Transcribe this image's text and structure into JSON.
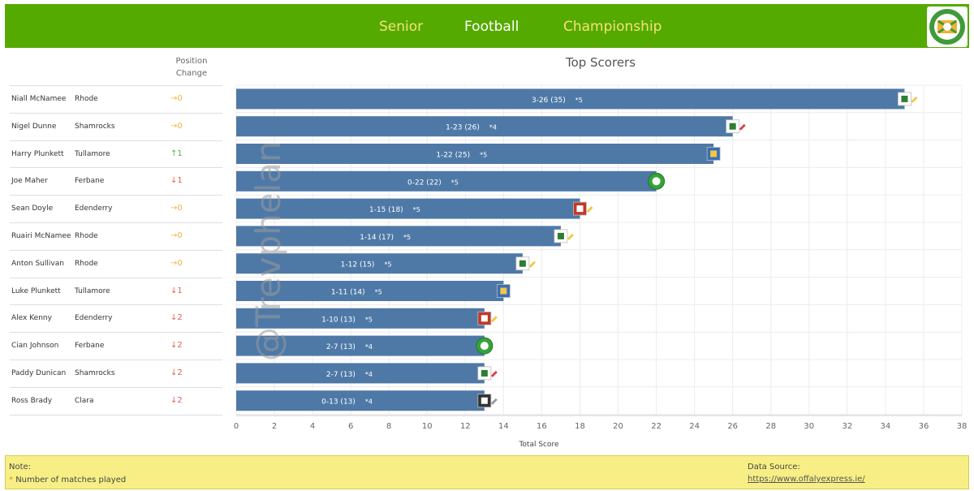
{
  "header": {
    "title_words": [
      "Senior",
      "Football",
      "Championship"
    ],
    "title_colors": [
      "#f3e27a",
      "#ffffff",
      "#f3e27a"
    ],
    "logo_icon": "offaly-gaa-crest-icon"
  },
  "table": {
    "position_header_line1": "Position",
    "position_header_line2": "Change",
    "rows": [
      {
        "name": "Niall McNamee",
        "club": "Rhode",
        "change": "→0"
      },
      {
        "name": "Nigel Dunne",
        "club": "Shamrocks",
        "change": "→0"
      },
      {
        "name": "Harry Plunkett",
        "club": "Tullamore",
        "change": "↑1"
      },
      {
        "name": "Joe Maher",
        "club": "Ferbane",
        "change": "↓1"
      },
      {
        "name": "Sean Doyle",
        "club": "Edenderry",
        "change": "→0"
      },
      {
        "name": "Ruairi McNamee",
        "club": "Rhode",
        "change": "→0"
      },
      {
        "name": "Anton Sullivan",
        "club": "Rhode",
        "change": "→0"
      },
      {
        "name": "Luke Plunkett",
        "club": "Tullamore",
        "change": "↓1"
      },
      {
        "name": "Alex Kenny",
        "club": "Edenderry",
        "change": "↓2"
      },
      {
        "name": "Cian Johnson",
        "club": "Ferbane",
        "change": "↓2"
      },
      {
        "name": "Paddy Dunican",
        "club": "Shamrocks",
        "change": "↓2"
      },
      {
        "name": "Ross Brady",
        "club": "Clara",
        "change": "↓2"
      }
    ],
    "change_colors": {
      "same": "#f0b437",
      "up": "#4caf50",
      "down": "#e65a5a"
    }
  },
  "chart_data": {
    "type": "bar",
    "orientation": "horizontal",
    "title": "Top Scorers",
    "xlabel": "Total Score",
    "xlim": [
      0,
      38
    ],
    "xticks": [
      0,
      2,
      4,
      6,
      8,
      10,
      12,
      14,
      16,
      18,
      20,
      22,
      24,
      26,
      28,
      30,
      32,
      34,
      36,
      38
    ],
    "grid": true,
    "bar_color": "#4e79a7",
    "categories": [
      "Niall McNamee",
      "Nigel Dunne",
      "Harry Plunkett",
      "Joe Maher",
      "Sean Doyle",
      "Ruairi McNamee",
      "Anton Sullivan",
      "Luke Plunkett",
      "Alex Kenny",
      "Cian Johnson",
      "Paddy Dunican",
      "Ross Brady"
    ],
    "values": [
      35,
      26,
      25,
      22,
      18,
      17,
      15,
      14,
      13,
      13,
      13,
      13
    ],
    "score_labels": [
      "3-26 (35)",
      "1-23 (26)",
      "1-22 (25)",
      "0-22 (22)",
      "1-15 (18)",
      "1-14 (17)",
      "1-12 (15)",
      "1-11 (14)",
      "1-10 (13)",
      "2-7 (13)",
      "2-7 (13)",
      "0-13 (13)"
    ],
    "matches_labels": [
      "*5",
      "*4",
      "*5",
      "*5",
      "*5",
      "*5",
      "*5",
      "*5",
      "*5",
      "*4",
      "*4",
      "*4"
    ],
    "club_badges": [
      "rhode",
      "shamrocks",
      "tullamore",
      "ferbane",
      "edenderry",
      "rhode",
      "rhode",
      "tullamore",
      "edenderry",
      "ferbane",
      "shamrocks",
      "clara"
    ]
  },
  "watermark": "@Trevphelan",
  "note": {
    "heading": "Note:",
    "star": "*",
    "text": "Number of matches played"
  },
  "source": {
    "heading": "Data Source:",
    "link": "https://www.offalyexpress.ie/"
  }
}
